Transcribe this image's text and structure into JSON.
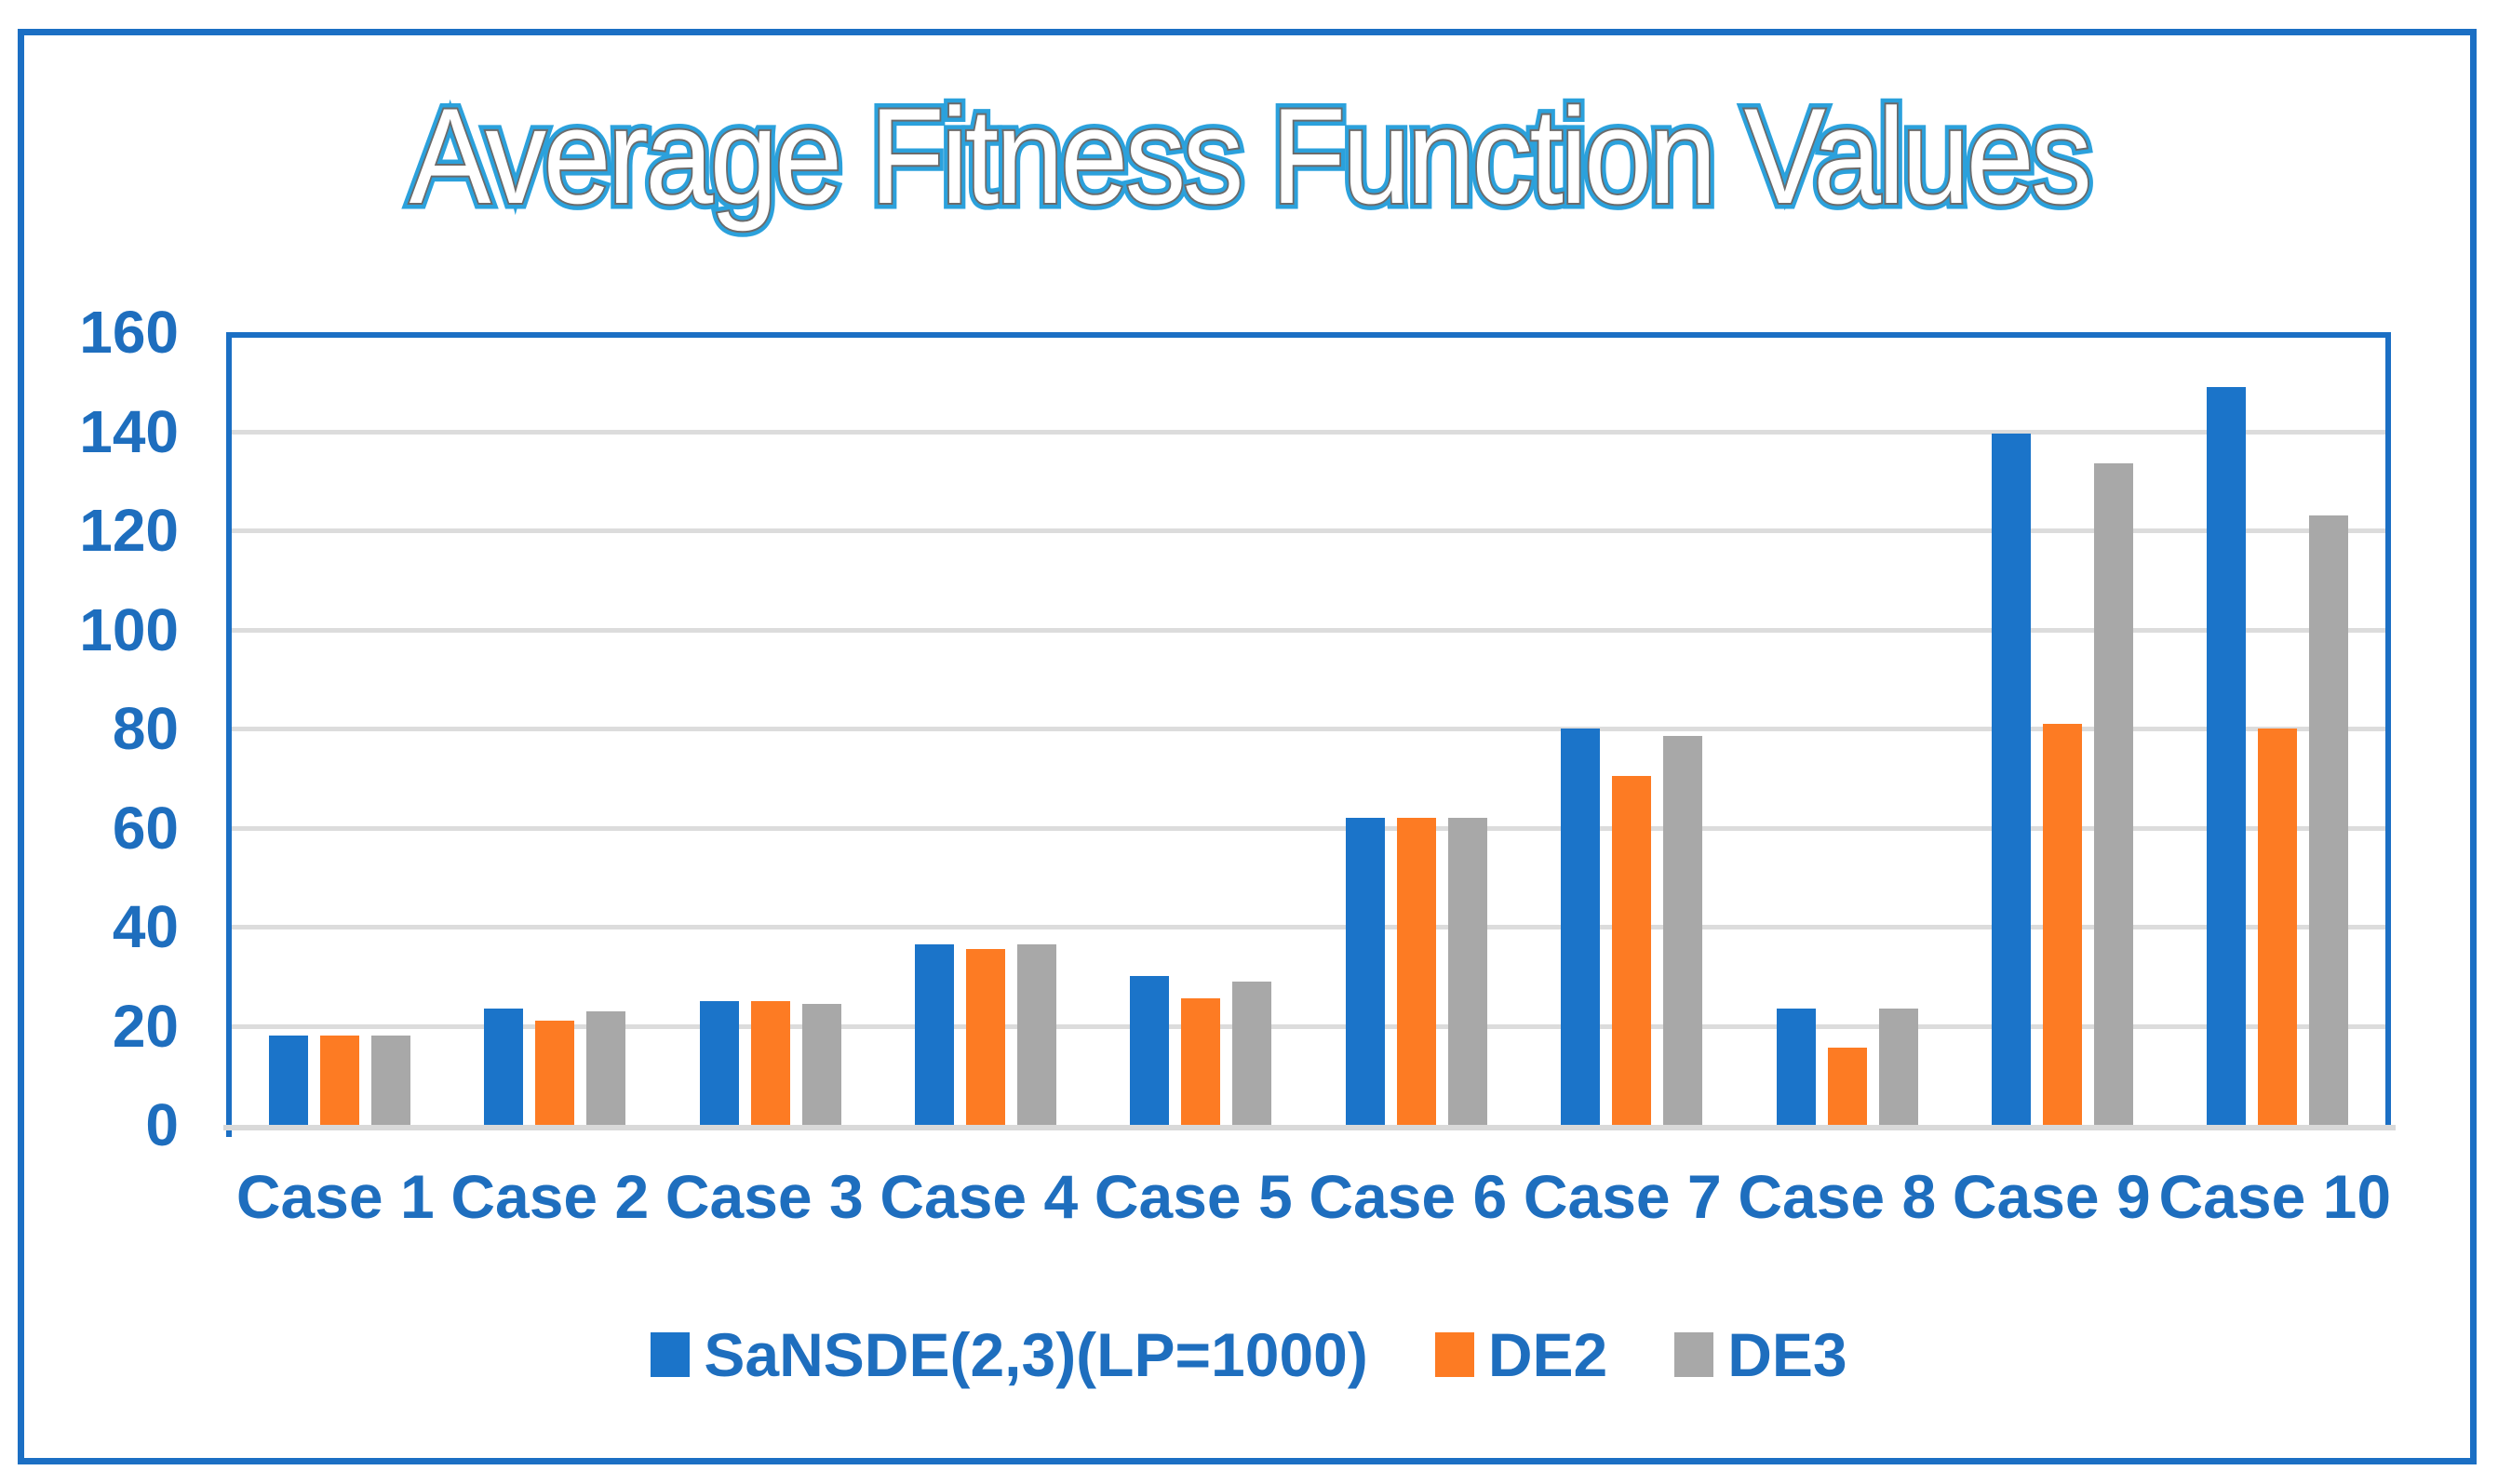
{
  "chart_data": {
    "type": "bar",
    "title": "Average Fitness Function Values",
    "categories": [
      "Case 1",
      "Case 2",
      "Case 3",
      "Case 4",
      "Case 5",
      "Case 6",
      "Case 7",
      "Case 8",
      "Case 9",
      "Case 10"
    ],
    "series": [
      {
        "name": "SaNSDE(2,3)(LP=1000)",
        "color": "#1B74C9",
        "values": [
          18,
          23.5,
          25,
          36.5,
          30,
          62,
          80,
          23.5,
          139.5,
          149
        ]
      },
      {
        "name": "DE2",
        "color": "#FD7B23",
        "values": [
          18,
          21,
          25,
          35.5,
          25.5,
          62,
          70.5,
          15.5,
          81,
          80
        ]
      },
      {
        "name": "DE3",
        "color": "#A8A8A8",
        "values": [
          18,
          23,
          24.5,
          36.5,
          29,
          62,
          78.5,
          23.5,
          133.5,
          123
        ]
      }
    ],
    "ylim": [
      0,
      160
    ],
    "yticks": [
      0,
      20,
      40,
      60,
      80,
      100,
      120,
      140,
      160
    ],
    "grid": true,
    "legend_position": "bottom",
    "colors": {
      "frame_border": "#1B6FC4",
      "plot_border": "#1B6FC4",
      "gridline": "#DCDCDC",
      "axis_line": "#D9D9D9",
      "label_text": "#1E6EBE",
      "title_outline": "#2BA1DC",
      "title_inner_line": "#6B6B6B",
      "background": "#FFFFFF"
    }
  }
}
